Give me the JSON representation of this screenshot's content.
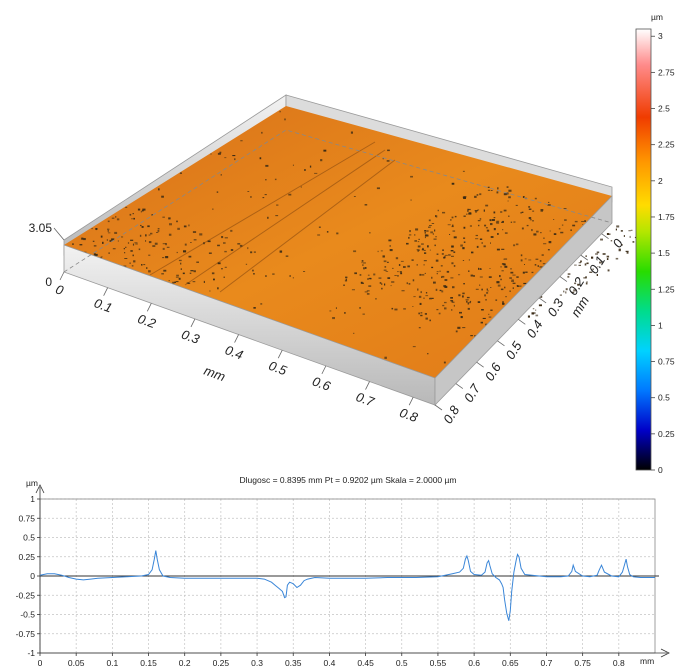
{
  "chart_data": [
    {
      "type": "surface3d",
      "unit_label": "µm",
      "z_max_label": "3.05",
      "z_min_label": "0",
      "x_axis": {
        "unit": "mm",
        "ticks": [
          "0",
          "0.1",
          "0.2",
          "0.3",
          "0.4",
          "0.5",
          "0.6",
          "0.7",
          "0.8"
        ]
      },
      "y_axis": {
        "unit": "mm",
        "ticks": [
          "0",
          "0.1",
          "0.2",
          "0.3",
          "0.4",
          "0.5",
          "0.6",
          "0.7",
          "0.8"
        ]
      },
      "colorbar": {
        "unit": "µm",
        "ticks": [
          "0",
          "0.25",
          "0.5",
          "0.75",
          "1",
          "1.25",
          "1.5",
          "1.75",
          "2",
          "2.25",
          "2.5",
          "2.75",
          "3"
        ],
        "range": [
          0,
          3.05
        ],
        "colors": [
          "#000000",
          "#0000c8",
          "#0078ff",
          "#00d2ff",
          "#00dc8c",
          "#28dc00",
          "#b4e600",
          "#ffdc00",
          "#ff9600",
          "#f03c00",
          "#ff8c8c",
          "#ffffff"
        ]
      },
      "surface_color": "#e07a14",
      "pit_color": "#3a2a14"
    },
    {
      "type": "line",
      "title": "Dlugosc = 0.8395 mm  Pt = 0.9202 µm  Skala = 2.0000 µm",
      "ylabel": "µm",
      "xlabel": "mm",
      "xlim": [
        0,
        0.85
      ],
      "ylim": [
        -1,
        1
      ],
      "xticks": [
        "0",
        "0.05",
        "0.1",
        "0.15",
        "0.2",
        "0.25",
        "0.3",
        "0.35",
        "0.4",
        "0.45",
        "0.5",
        "0.55",
        "0.6",
        "0.65",
        "0.7",
        "0.75",
        "0.8"
      ],
      "yticks": [
        "1",
        "0.75",
        "0.5",
        "0.25",
        "0",
        "-0.25",
        "-0.5",
        "-0.75",
        "-1"
      ],
      "grid": true,
      "line_color": "#3a86d8",
      "x": [
        0,
        0.01,
        0.02,
        0.03,
        0.04,
        0.05,
        0.06,
        0.07,
        0.08,
        0.1,
        0.12,
        0.14,
        0.15,
        0.155,
        0.158,
        0.16,
        0.162,
        0.165,
        0.17,
        0.18,
        0.2,
        0.22,
        0.25,
        0.28,
        0.3,
        0.31,
        0.32,
        0.325,
        0.33,
        0.335,
        0.338,
        0.34,
        0.342,
        0.345,
        0.35,
        0.355,
        0.36,
        0.365,
        0.37,
        0.38,
        0.4,
        0.42,
        0.45,
        0.48,
        0.5,
        0.52,
        0.55,
        0.56,
        0.57,
        0.58,
        0.585,
        0.588,
        0.59,
        0.592,
        0.595,
        0.6,
        0.61,
        0.615,
        0.618,
        0.62,
        0.622,
        0.625,
        0.63,
        0.635,
        0.638,
        0.64,
        0.642,
        0.645,
        0.648,
        0.65,
        0.652,
        0.655,
        0.658,
        0.66,
        0.662,
        0.665,
        0.67,
        0.68,
        0.7,
        0.72,
        0.73,
        0.735,
        0.737,
        0.74,
        0.75,
        0.76,
        0.77,
        0.773,
        0.776,
        0.78,
        0.79,
        0.8,
        0.805,
        0.808,
        0.81,
        0.812,
        0.815,
        0.82,
        0.83,
        0.84,
        0.85
      ],
      "y": [
        0.01,
        0.03,
        0.03,
        0.01,
        -0.02,
        -0.04,
        -0.05,
        -0.04,
        -0.03,
        -0.02,
        -0.01,
        0,
        0.02,
        0.08,
        0.22,
        0.33,
        0.22,
        0.08,
        0,
        -0.02,
        -0.03,
        -0.03,
        -0.03,
        -0.03,
        -0.03,
        -0.04,
        -0.08,
        -0.12,
        -0.16,
        -0.2,
        -0.28,
        -0.27,
        -0.12,
        -0.08,
        -0.1,
        -0.15,
        -0.12,
        -0.06,
        -0.04,
        -0.02,
        -0.03,
        -0.03,
        -0.03,
        -0.02,
        -0.02,
        -0.02,
        -0.01,
        0.01,
        0.03,
        0.05,
        0.1,
        0.22,
        0.26,
        0.2,
        0.06,
        0.02,
        0.01,
        0.05,
        0.17,
        0.2,
        0.13,
        0.03,
        -0.02,
        -0.05,
        -0.1,
        -0.15,
        -0.3,
        -0.48,
        -0.58,
        -0.45,
        -0.2,
        0.05,
        0.2,
        0.28,
        0.25,
        0.1,
        0.02,
        0.01,
        -0.01,
        -0.01,
        0,
        0.06,
        0.14,
        0.06,
        0,
        -0.01,
        0.01,
        0.08,
        0.14,
        0.05,
        0,
        -0.01,
        0.05,
        0.15,
        0.22,
        0.12,
        0.02,
        -0.01,
        -0.02,
        -0.02,
        -0.02
      ]
    }
  ]
}
